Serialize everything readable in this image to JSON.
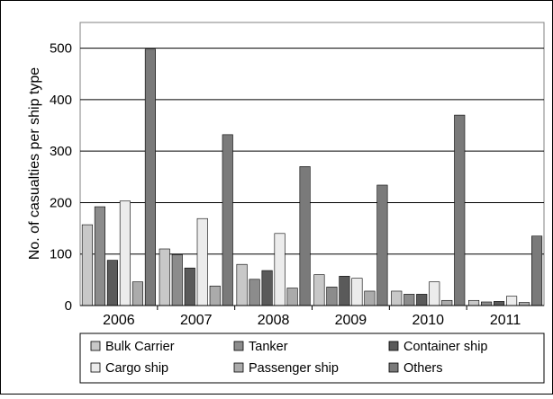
{
  "chart_data": {
    "type": "bar",
    "title": "",
    "xlabel": "",
    "ylabel": "No. of casualties per ship type",
    "ylim": [
      0,
      550
    ],
    "yticks": [
      0,
      100,
      200,
      300,
      400,
      500
    ],
    "grid": true,
    "legend_position": "bottom",
    "categories": [
      "2006",
      "2007",
      "2008",
      "2009",
      "2010",
      "2011"
    ],
    "series": [
      {
        "name": "Bulk Carrier",
        "color": "#c8c8c8",
        "values": [
          157,
          110,
          80,
          60,
          28,
          10
        ]
      },
      {
        "name": "Tanker",
        "color": "#8c8c8c",
        "values": [
          192,
          99,
          51,
          36,
          22,
          7
        ]
      },
      {
        "name": "Container ship",
        "color": "#5a5a5a",
        "values": [
          88,
          73,
          68,
          57,
          22,
          8
        ]
      },
      {
        "name": "Cargo ship",
        "color": "#ececec",
        "values": [
          203,
          169,
          140,
          53,
          46,
          18
        ]
      },
      {
        "name": "Passenger ship",
        "color": "#ababab",
        "values": [
          46,
          38,
          34,
          28,
          10,
          6
        ]
      },
      {
        "name": "Others",
        "color": "#7a7a7a",
        "values": [
          498,
          332,
          270,
          234,
          370,
          135
        ]
      }
    ]
  }
}
